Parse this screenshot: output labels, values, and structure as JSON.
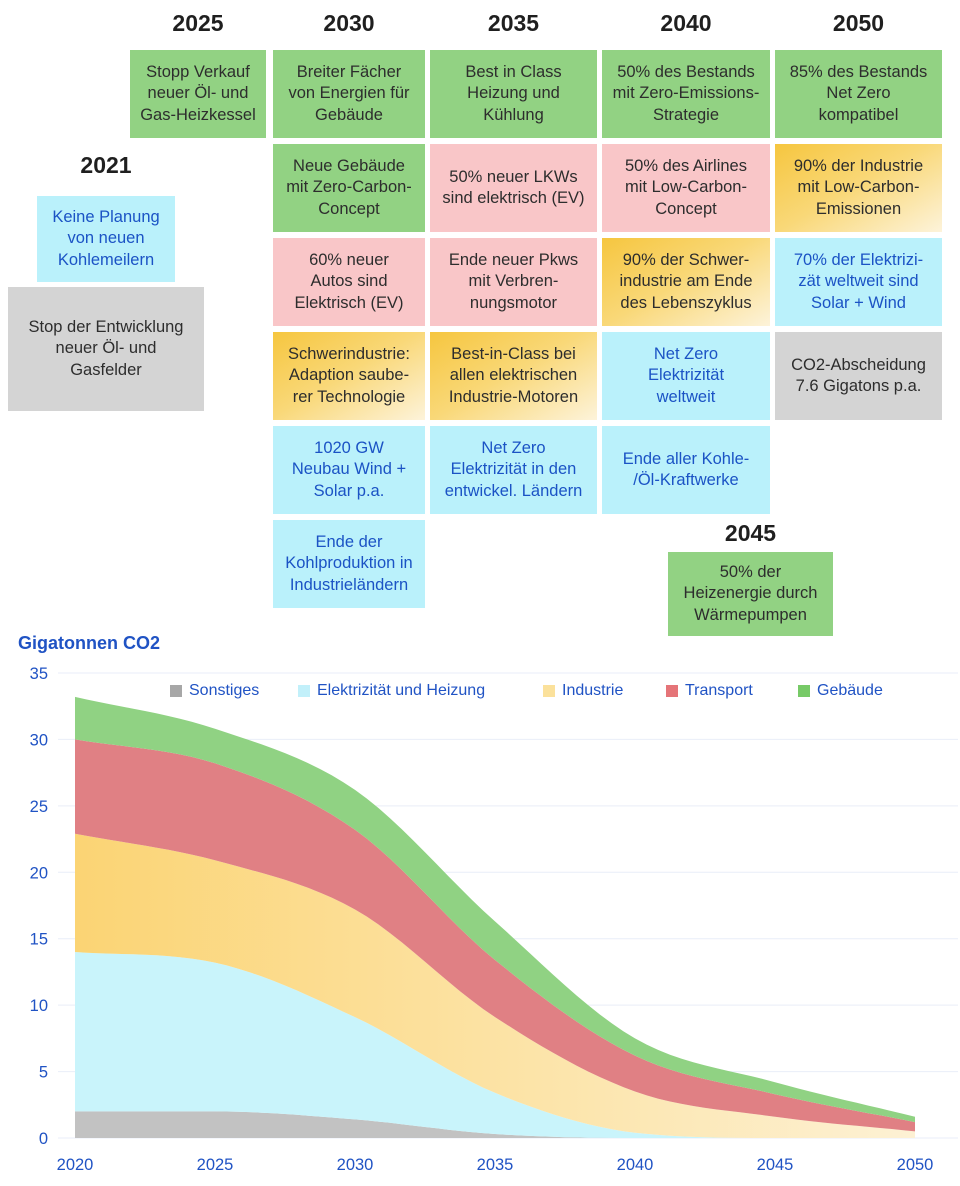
{
  "timeline": {
    "columns": [
      {
        "year": "2021",
        "boxes": [
          {
            "text": "Keine Planung\nvon neuen\nKohlemeilern"
          },
          {
            "text": "Stop der Entwicklung\nneuer Öl- und\nGasfelder"
          }
        ]
      },
      {
        "year": "2025",
        "boxes": [
          {
            "text": "Stopp Verkauf\nneuer Öl- und\nGas-Heizkessel"
          }
        ]
      },
      {
        "year": "2030",
        "boxes": [
          {
            "text": "Breiter Fächer\nvon Energien für\nGebäude"
          },
          {
            "text": "Neue Gebäude\nmit Zero-Carbon-\nConcept"
          },
          {
            "text": "60% neuer\nAutos sind\nElektrisch (EV)"
          },
          {
            "text": "Schwerindustrie:\nAdaption saube-\nrer Technologie"
          },
          {
            "text": "1020 GW\nNeubau Wind +\nSolar p.a."
          },
          {
            "text": "Ende der\nKohlproduktion in\nIndustrieländern"
          }
        ]
      },
      {
        "year": "2035",
        "boxes": [
          {
            "text": "Best in Class\nHeizung und\nKühlung"
          },
          {
            "text": "50% neuer LKWs\nsind elektrisch (EV)"
          },
          {
            "text": "Ende neuer Pkws\nmit Verbren-\nnungsmotor"
          },
          {
            "text": "Best-in-Class bei\nallen elektrischen\nIndustrie-Motoren"
          },
          {
            "text": "Net Zero\nElektrizität in den\nentwickel. Ländern"
          }
        ]
      },
      {
        "year": "2040",
        "boxes": [
          {
            "text": "50% des Bestands\nmit Zero-Emissions-\nStrategie"
          },
          {
            "text": "50% des Airlines\nmit Low-Carbon-\nConcept"
          },
          {
            "text": "90% der Schwer-\nindustrie am Ende\ndes Lebenszyklus"
          },
          {
            "text": "Net Zero\nElektrizität\nweltweit"
          },
          {
            "text": "Ende aller Kohle-\n/Öl-Kraftwerke"
          }
        ]
      },
      {
        "year": "2045",
        "boxes": [
          {
            "text": "50% der\nHeizenergie durch\nWärmepumpen"
          }
        ]
      },
      {
        "year": "2050",
        "boxes": [
          {
            "text": "85% des Bestands\nNet Zero\nkompatibel"
          },
          {
            "text": "90% der Industrie\nmit Low-Carbon-\nEmissionen"
          },
          {
            "text": "70% der Elektrizi-\nzät weltweit sind\nSolar + Wind"
          },
          {
            "text": "CO2-Abscheidung\n7.6 Gigatons p.a."
          }
        ]
      }
    ]
  },
  "colors": {
    "box_green": "#92d283",
    "box_pink": "#f9c6c8",
    "box_gold": "#f6c63f",
    "box_cyan": "#baf1fb",
    "box_gray": "#d4d4d4",
    "blue_text": "#1b53c5",
    "axis_blue": "#2053c4"
  },
  "chart_data": {
    "type": "area",
    "stacked": true,
    "title": "Gigatonnen CO2",
    "x": [
      2020,
      2025,
      2030,
      2035,
      2040,
      2045,
      2050
    ],
    "xticks": [
      2020,
      2025,
      2030,
      2035,
      2040,
      2045,
      2050
    ],
    "yticks": [
      0,
      5,
      10,
      15,
      20,
      25,
      30,
      35
    ],
    "ylim": [
      0,
      35
    ],
    "grid": "horizontal",
    "legend_position": "top",
    "series": [
      {
        "name": "Sonstiges",
        "values": [
          2.0,
          2.0,
          1.4,
          0.3,
          0,
          0,
          0
        ],
        "color": "#a7a7a7",
        "fill": "#c2c2c2"
      },
      {
        "name": "Elektrizität und Heizung",
        "values": [
          12.0,
          11.2,
          7.7,
          3.1,
          0.4,
          0,
          0
        ],
        "color": "#c2f0fa",
        "fill": "#c9f4fb"
      },
      {
        "name": "Industrie",
        "values": [
          8.9,
          7.7,
          8.1,
          5.7,
          3.1,
          1.6,
          0.5
        ],
        "color": "#fbe19b",
        "fill_gradient": [
          "#fbd474",
          "#fdf1d4"
        ]
      },
      {
        "name": "Transport",
        "values": [
          7.1,
          7.3,
          6.0,
          4.3,
          2.7,
          1.7,
          0.7
        ],
        "color": "#e57478",
        "fill": "#e08084"
      },
      {
        "name": "Gebäude",
        "values": [
          3.2,
          2.6,
          3.0,
          2.9,
          1.3,
          0.9,
          0.4
        ],
        "color": "#77ca67",
        "fill": "#90d283"
      }
    ]
  }
}
